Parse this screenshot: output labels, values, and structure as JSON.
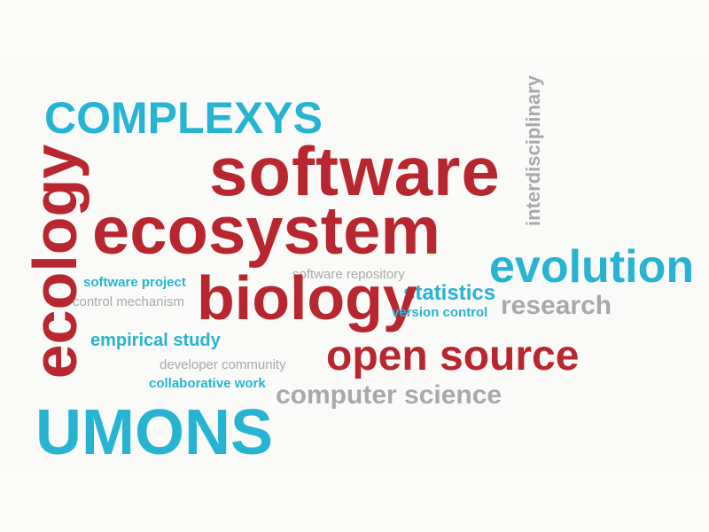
{
  "colors": {
    "red": "#b8262f",
    "cyan": "#27b4d3",
    "gray": "#a9a9a9",
    "background": "#fafaf8"
  },
  "words": {
    "software": "software",
    "ecosystem": "ecosystem",
    "biology": "biology",
    "open_source": "open source",
    "ecology": "ecology",
    "complexys": "COMPLEXYS",
    "umons": "UMONS",
    "evolution": "evolution",
    "statistics": "statistics",
    "version_control": "version control",
    "software_project": "software project",
    "empirical_study": "empirical study",
    "collaborative_work": "collaborative work",
    "interdisciplinary": "interdisciplinary",
    "research": "research",
    "software_repository": "software repository",
    "control_mechanism": "control mechanism",
    "developer_community": "developer community",
    "computer_science": "computer science"
  }
}
